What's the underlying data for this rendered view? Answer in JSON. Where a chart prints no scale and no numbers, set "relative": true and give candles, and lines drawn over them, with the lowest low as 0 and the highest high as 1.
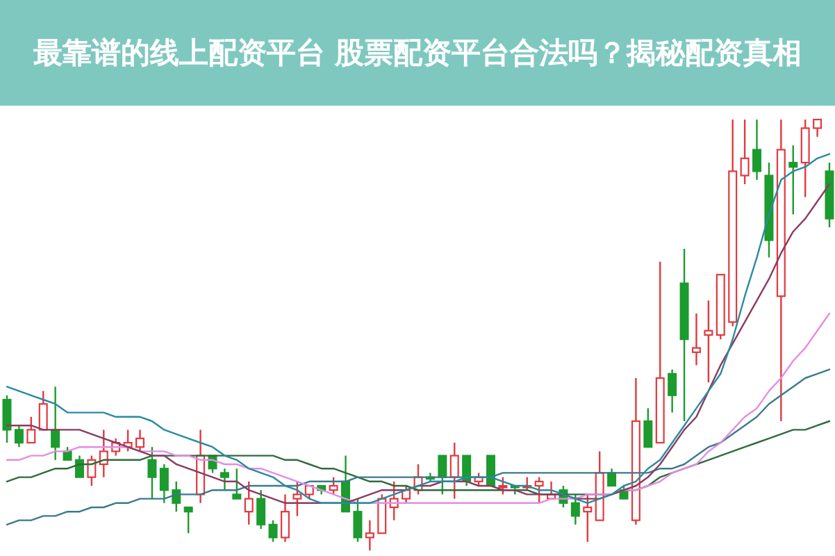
{
  "chart_data": {
    "type": "candlestick",
    "title": "最靠谱的线上配资平台 股票配资平台合法吗？揭秘配资真相",
    "relative": true,
    "categories": [
      null,
      null,
      null,
      null,
      null,
      null,
      null,
      null,
      null,
      null,
      null,
      null,
      null,
      null,
      null,
      null,
      null,
      null,
      null,
      null,
      null,
      null,
      null,
      null,
      null,
      null,
      null,
      null,
      null,
      null,
      null,
      null,
      null,
      null,
      null,
      null,
      null,
      null,
      null,
      null,
      null,
      null,
      null,
      null,
      null,
      null,
      null,
      null,
      null,
      null,
      null,
      null,
      null,
      null,
      null,
      null,
      null,
      null,
      null,
      null,
      null,
      null,
      null,
      null,
      null,
      null,
      null,
      null,
      null
    ],
    "ohlc": [
      [
        0.35,
        0.36,
        0.25,
        0.28
      ],
      [
        0.28,
        0.29,
        0.24,
        0.25
      ],
      [
        0.25,
        0.31,
        0.25,
        0.28
      ],
      [
        0.28,
        0.37,
        0.28,
        0.34
      ],
      [
        0.28,
        0.38,
        0.21,
        0.24
      ],
      [
        0.23,
        0.24,
        0.21,
        0.21
      ],
      [
        0.21,
        0.22,
        0.17,
        0.17
      ],
      [
        0.17,
        0.22,
        0.15,
        0.21
      ],
      [
        0.2,
        0.28,
        0.17,
        0.23
      ],
      [
        0.23,
        0.26,
        0.22,
        0.25
      ],
      [
        0.24,
        0.28,
        0.23,
        0.25
      ],
      [
        0.24,
        0.28,
        0.23,
        0.26
      ],
      [
        0.21,
        0.24,
        0.12,
        0.17
      ],
      [
        0.19,
        0.2,
        0.11,
        0.14
      ],
      [
        0.14,
        0.16,
        0.09,
        0.11
      ],
      [
        0.1,
        0.1,
        0.04,
        0.09
      ],
      [
        0.13,
        0.28,
        0.11,
        0.22
      ],
      [
        0.22,
        0.22,
        0.18,
        0.19
      ],
      [
        0.18,
        0.19,
        0.14,
        0.17
      ],
      [
        0.13,
        0.19,
        0.12,
        0.12
      ],
      [
        0.09,
        0.16,
        0.06,
        0.12
      ],
      [
        0.12,
        0.14,
        0.05,
        0.06
      ],
      [
        0.06,
        0.07,
        0.02,
        0.03
      ],
      [
        0.03,
        0.13,
        0.02,
        0.09
      ],
      [
        0.12,
        0.16,
        0.08,
        0.13
      ],
      [
        0.13,
        0.15,
        0.12,
        0.15
      ],
      [
        0.15,
        0.15,
        0.13,
        0.14
      ],
      [
        0.14,
        0.17,
        0.13,
        0.15
      ],
      [
        0.16,
        0.22,
        0.09,
        0.09
      ],
      [
        0.09,
        0.12,
        0.02,
        0.03
      ],
      [
        0.03,
        0.07,
        0,
        0.04
      ],
      [
        0.04,
        0.13,
        0.04,
        0.12
      ],
      [
        0.1,
        0.16,
        0.07,
        0.12
      ],
      [
        0.12,
        0.15,
        0.11,
        0.14
      ],
      [
        0.14,
        0.2,
        0.13,
        0.17
      ],
      [
        0.17,
        0.18,
        0.16,
        0.17
      ],
      [
        0.22,
        0.22,
        0.13,
        0.17
      ],
      [
        0.17,
        0.25,
        0.12,
        0.22
      ],
      [
        0.22,
        0.22,
        0.15,
        0.16
      ],
      [
        0.16,
        0.18,
        0.15,
        0.17
      ],
      [
        0.22,
        0.22,
        0.15,
        0.15
      ],
      [
        0.15,
        0.17,
        0.13,
        0.15
      ],
      [
        0.15,
        0.15,
        0.13,
        0.15
      ],
      [
        0.15,
        0.17,
        0.14,
        0.15
      ],
      [
        0.15,
        0.17,
        0.11,
        0.16
      ],
      [
        0.12,
        0.16,
        0.12,
        0.13
      ],
      [
        0.14,
        0.15,
        0.1,
        0.11
      ],
      [
        0.11,
        0.13,
        0.06,
        0.08
      ],
      [
        0.09,
        0.13,
        0.02,
        0.1
      ],
      [
        0.07,
        0.23,
        0.07,
        0.18
      ],
      [
        0.18,
        0.19,
        0.15,
        0.15
      ],
      [
        0.14,
        0.15,
        0.12,
        0.12
      ],
      [
        0.07,
        0.4,
        0.06,
        0.3
      ],
      [
        0.3,
        0.33,
        0.24,
        0.24
      ],
      [
        0.25,
        0.67,
        0.25,
        0.4
      ],
      [
        0.41,
        0.42,
        0.32,
        0.36
      ],
      [
        0.62,
        0.7,
        0.3,
        0.49
      ],
      [
        0.46,
        0.55,
        0.43,
        0.47
      ],
      [
        0.5,
        0.58,
        0.39,
        0.51
      ],
      [
        0.5,
        0.64,
        0.49,
        0.64
      ],
      [
        0.53,
        1,
        0.52,
        0.88
      ],
      [
        0.87,
        1,
        0.85,
        0.91
      ],
      [
        0.93,
        1,
        0.86,
        0.88
      ],
      [
        0.87,
        0.9,
        0.68,
        0.72
      ],
      [
        0.59,
        1,
        0.3,
        0.93
      ],
      [
        0.9,
        0.94,
        0.78,
        0.89
      ],
      [
        0.9,
        1,
        0.82,
        0.98
      ],
      [
        0.98,
        1,
        0.96,
        1
      ],
      [
        0.88,
        0.9,
        0.75,
        0.77
      ]
    ],
    "colors": [
      "#1c9b2e",
      "#1c9b2e",
      "#e03a3e",
      "#e03a3e",
      "#1c9b2e",
      "#1c9b2e",
      "#1c9b2e",
      "#e03a3e",
      "#e03a3e",
      "#e03a3e",
      "#e03a3e",
      "#e03a3e",
      "#1c9b2e",
      "#1c9b2e",
      "#1c9b2e",
      "#1c9b2e",
      "#e03a3e",
      "#1c9b2e",
      "#1c9b2e",
      "#1c9b2e",
      "#e03a3e",
      "#1c9b2e",
      "#1c9b2e",
      "#e03a3e",
      "#e03a3e",
      "#e03a3e",
      "#1c9b2e",
      "#e03a3e",
      "#1c9b2e",
      "#1c9b2e",
      "#e03a3e",
      "#e03a3e",
      "#e03a3e",
      "#e03a3e",
      "#e03a3e",
      "#1c9b2e",
      "#1c9b2e",
      "#e03a3e",
      "#1c9b2e",
      "#e03a3e",
      "#1c9b2e",
      "#e03a3e",
      "#1c9b2e",
      "#e03a3e",
      "#e03a3e",
      "#e03a3e",
      "#1c9b2e",
      "#1c9b2e",
      "#e03a3e",
      "#e03a3e",
      "#1c9b2e",
      "#1c9b2e",
      "#e03a3e",
      "#1c9b2e",
      "#e03a3e",
      "#1c9b2e",
      "#1c9b2e",
      "#e03a3e",
      "#e03a3e",
      "#e03a3e",
      "#e03a3e",
      "#e03a3e",
      "#1c9b2e",
      "#1c9b2e",
      "#e03a3e",
      "#1c9b2e",
      "#e03a3e",
      "#e03a3e",
      "#1c9b2e"
    ],
    "series": [
      {
        "type": "line",
        "color": "#2e6b3e",
        "values": [
          0.16,
          0.17,
          0.17,
          0.18,
          0.19,
          0.19,
          0.2,
          0.2,
          0.21,
          0.21,
          0.21,
          0.21,
          0.22,
          0.22,
          0.22,
          0.22,
          0.22,
          0.22,
          0.22,
          0.22,
          0.22,
          0.22,
          0.22,
          0.21,
          0.21,
          0.2,
          0.19,
          0.19,
          0.18,
          0.17,
          0.16,
          0.16,
          0.15,
          0.15,
          0.14,
          0.14,
          0.14,
          0.14,
          0.14,
          0.14,
          0.14,
          0.14,
          0.14,
          0.14,
          0.13,
          0.13,
          0.13,
          0.13,
          0.13,
          0.13,
          0.13,
          0.14,
          0.14,
          0.15,
          0.17,
          0.18,
          0.19,
          0.2,
          0.21,
          0.22,
          0.23,
          0.24,
          0.25,
          0.26,
          0.27,
          0.28,
          0.28,
          0.29,
          0.3
        ]
      },
      {
        "type": "line",
        "color": "#3b7a8c",
        "values": [
          0.06,
          0.07,
          0.07,
          0.08,
          0.08,
          0.09,
          0.09,
          0.1,
          0.1,
          0.11,
          0.11,
          0.12,
          0.12,
          0.12,
          0.13,
          0.13,
          0.13,
          0.14,
          0.14,
          0.14,
          0.15,
          0.15,
          0.15,
          0.15,
          0.15,
          0.16,
          0.16,
          0.16,
          0.16,
          0.17,
          0.17,
          0.17,
          0.17,
          0.17,
          0.17,
          0.17,
          0.17,
          0.17,
          0.17,
          0.17,
          0.17,
          0.18,
          0.18,
          0.18,
          0.18,
          0.18,
          0.18,
          0.18,
          0.18,
          0.18,
          0.18,
          0.18,
          0.18,
          0.18,
          0.19,
          0.19,
          0.2,
          0.22,
          0.24,
          0.25,
          0.27,
          0.29,
          0.31,
          0.34,
          0.36,
          0.38,
          0.4,
          0.41,
          0.42
        ]
      },
      {
        "type": "line",
        "color": "#e48ce4",
        "values": [
          0.21,
          0.21,
          0.22,
          0.22,
          0.23,
          0.23,
          0.24,
          0.24,
          0.24,
          0.24,
          0.24,
          0.23,
          0.23,
          0.23,
          0.22,
          0.22,
          0.21,
          0.21,
          0.2,
          0.2,
          0.19,
          0.19,
          0.18,
          0.17,
          0.16,
          0.15,
          0.14,
          0.13,
          0.12,
          0.11,
          0.11,
          0.11,
          0.11,
          0.11,
          0.11,
          0.11,
          0.11,
          0.11,
          0.11,
          0.11,
          0.11,
          0.11,
          0.11,
          0.11,
          0.11,
          0.12,
          0.12,
          0.12,
          0.13,
          0.13,
          0.13,
          0.14,
          0.14,
          0.15,
          0.16,
          0.18,
          0.19,
          0.2,
          0.23,
          0.25,
          0.28,
          0.31,
          0.33,
          0.37,
          0.4,
          0.44,
          0.47,
          0.51,
          0.55
        ]
      },
      {
        "type": "line",
        "color": "#8b3a62",
        "values": [
          0.29,
          0.29,
          0.29,
          0.28,
          0.28,
          0.28,
          0.28,
          0.27,
          0.26,
          0.25,
          0.24,
          0.23,
          0.22,
          0.22,
          0.2,
          0.19,
          0.18,
          0.17,
          0.16,
          0.16,
          0.14,
          0.13,
          0.12,
          0.11,
          0.11,
          0.11,
          0.11,
          0.11,
          0.11,
          0.12,
          0.13,
          0.14,
          0.14,
          0.14,
          0.15,
          0.15,
          0.16,
          0.16,
          0.16,
          0.15,
          0.15,
          0.14,
          0.14,
          0.13,
          0.13,
          0.13,
          0.13,
          0.12,
          0.12,
          0.12,
          0.13,
          0.14,
          0.15,
          0.17,
          0.2,
          0.24,
          0.28,
          0.31,
          0.37,
          0.43,
          0.48,
          0.53,
          0.58,
          0.63,
          0.69,
          0.74,
          0.77,
          0.81,
          0.85
        ]
      },
      {
        "type": "line",
        "color": "#2a8aa0",
        "values": [
          0.38,
          0.37,
          0.36,
          0.35,
          0.34,
          0.32,
          0.32,
          0.32,
          0.32,
          0.31,
          0.31,
          0.31,
          0.3,
          0.28,
          0.27,
          0.26,
          0.25,
          0.24,
          0.22,
          0.21,
          0.19,
          0.18,
          0.17,
          0.15,
          0.14,
          0.12,
          0.11,
          0.11,
          0.11,
          0.11,
          0.11,
          0.12,
          0.13,
          0.14,
          0.15,
          0.16,
          0.16,
          0.16,
          0.17,
          0.17,
          0.17,
          0.16,
          0.15,
          0.15,
          0.14,
          0.14,
          0.13,
          0.12,
          0.11,
          0.12,
          0.13,
          0.15,
          0.16,
          0.19,
          0.21,
          0.25,
          0.29,
          0.33,
          0.37,
          0.41,
          0.49,
          0.59,
          0.68,
          0.78,
          0.86,
          0.88,
          0.89,
          0.91,
          0.92
        ]
      }
    ]
  }
}
